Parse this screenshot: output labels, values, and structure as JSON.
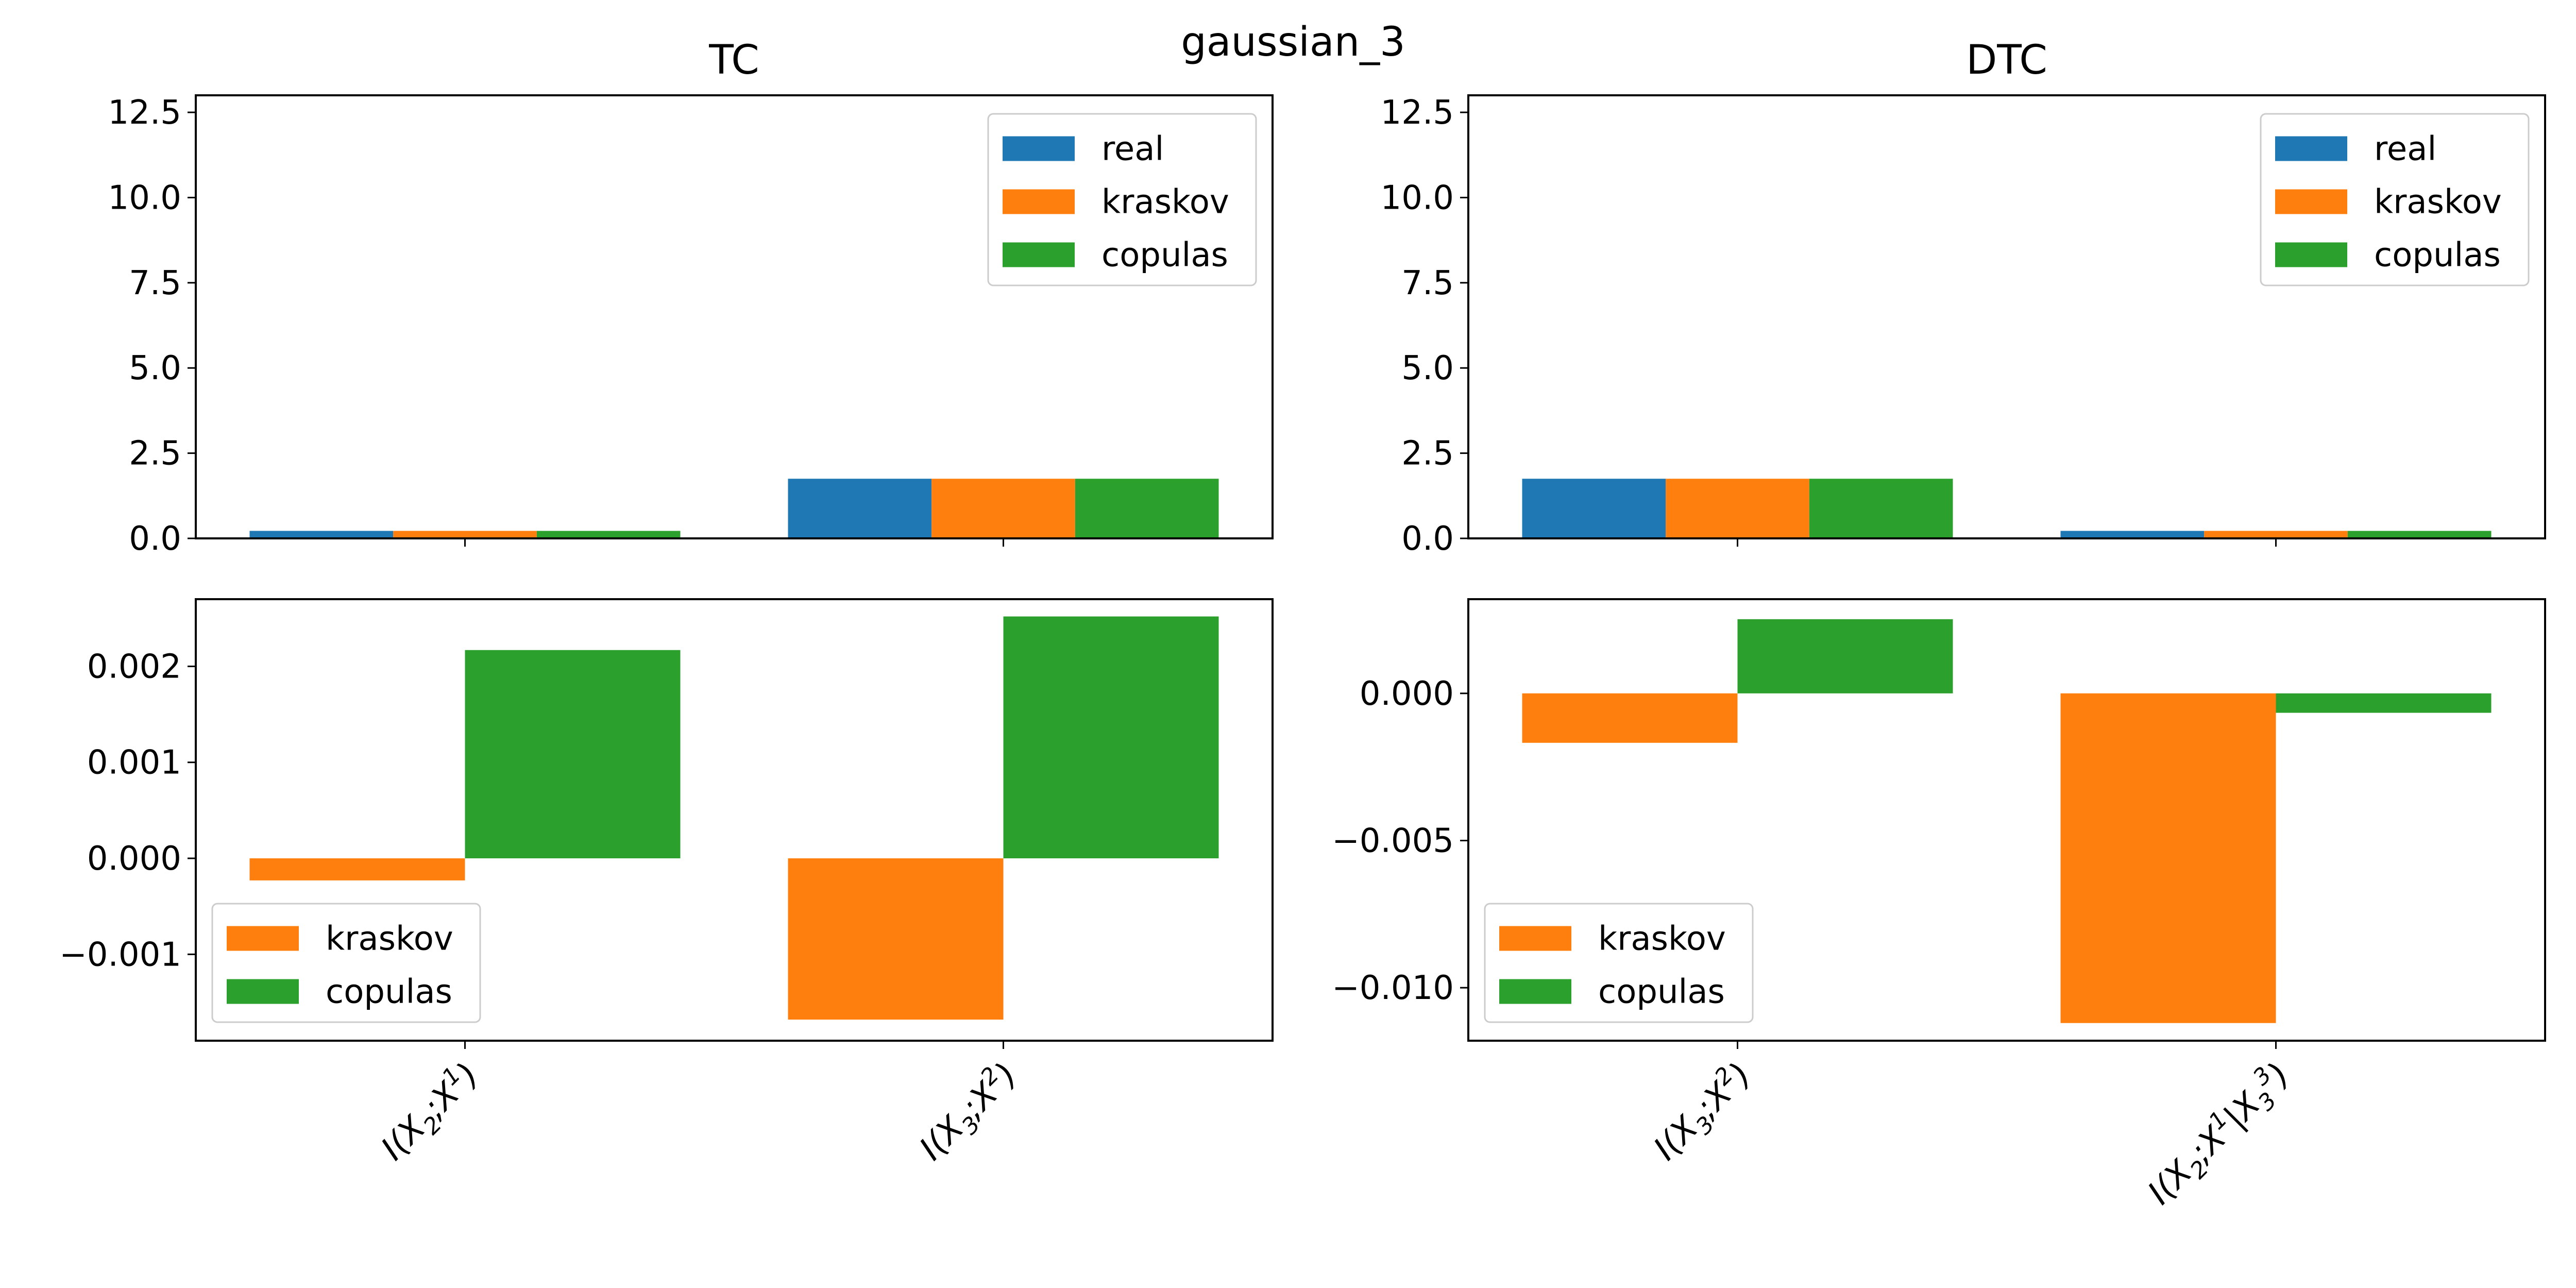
{
  "suptitle": "gaussian_3",
  "colors": {
    "real": "#1f77b4",
    "kraskov": "#ff7f0e",
    "copulas": "#2ca02c"
  },
  "chart_data": [
    {
      "id": "tc-top",
      "type": "bar",
      "title": "TC",
      "categories": [
        "I(X_2;X^1)",
        "I(X_3;X^2)"
      ],
      "series": [
        {
          "name": "real",
          "values": [
            0.22,
            1.75
          ]
        },
        {
          "name": "kraskov",
          "values": [
            0.22,
            1.75
          ]
        },
        {
          "name": "copulas",
          "values": [
            0.22,
            1.75
          ]
        }
      ],
      "ylim": [
        0,
        13.0
      ],
      "yticks": [
        0.0,
        2.5,
        5.0,
        7.5,
        10.0,
        12.5
      ],
      "ytick_labels": [
        "0.0",
        "2.5",
        "5.0",
        "7.5",
        "10.0",
        "12.5"
      ],
      "legend": "top-right"
    },
    {
      "id": "dtc-top",
      "type": "bar",
      "title": "DTC",
      "categories": [
        "I(X_3;X^2)",
        "I(X_2;X^1|X_3^3)"
      ],
      "series": [
        {
          "name": "real",
          "values": [
            1.75,
            0.22
          ]
        },
        {
          "name": "kraskov",
          "values": [
            1.75,
            0.22
          ]
        },
        {
          "name": "copulas",
          "values": [
            1.75,
            0.22
          ]
        }
      ],
      "ylim": [
        0,
        13.0
      ],
      "yticks": [
        0.0,
        2.5,
        5.0,
        7.5,
        10.0,
        12.5
      ],
      "ytick_labels": [
        "0.0",
        "2.5",
        "5.0",
        "7.5",
        "10.0",
        "12.5"
      ],
      "legend": "top-right"
    },
    {
      "id": "tc-bottom",
      "type": "bar",
      "title": "",
      "categories": [
        "I(X_2;X^1)",
        "I(X_3;X^2)"
      ],
      "series": [
        {
          "name": "kraskov",
          "values": [
            -0.00023,
            -0.00168
          ]
        },
        {
          "name": "copulas",
          "values": [
            0.00217,
            0.00252
          ]
        }
      ],
      "ylim": [
        -0.0019,
        0.0027
      ],
      "yticks": [
        -0.001,
        0.0,
        0.001,
        0.002
      ],
      "ytick_labels": [
        "−0.001",
        "0.000",
        "0.001",
        "0.002"
      ],
      "legend": "bottom-left"
    },
    {
      "id": "dtc-bottom",
      "type": "bar",
      "title": "",
      "categories": [
        "I(X_3;X^2)",
        "I(X_2;X^1|X_3^3)"
      ],
      "series": [
        {
          "name": "kraskov",
          "values": [
            -0.00168,
            -0.0112
          ]
        },
        {
          "name": "copulas",
          "values": [
            0.00252,
            -0.00066
          ]
        }
      ],
      "ylim": [
        -0.0118,
        0.0032
      ],
      "yticks": [
        -0.01,
        -0.005,
        0.0
      ],
      "ytick_labels": [
        "−0.010",
        "−0.005",
        "0.000"
      ],
      "legend": "bottom-left"
    }
  ]
}
